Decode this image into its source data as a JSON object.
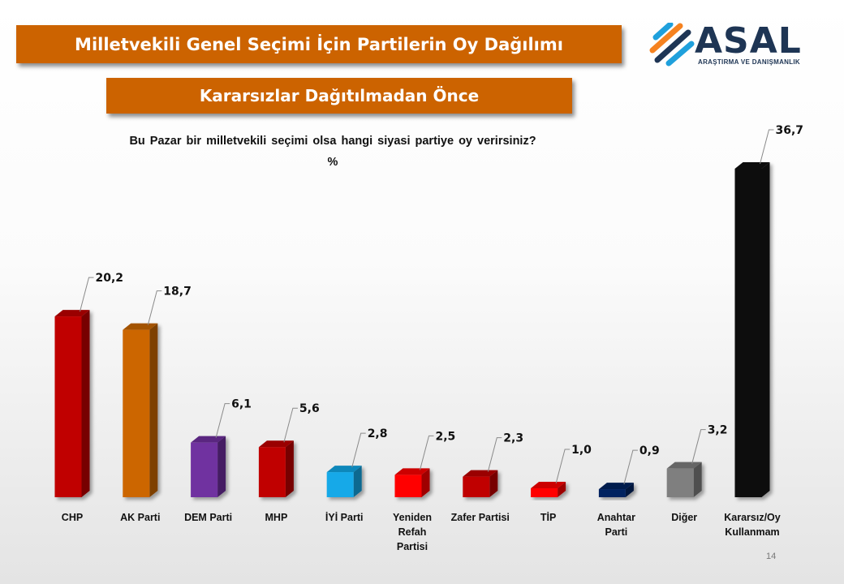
{
  "header": {
    "title": "Milletvekili Genel Seçimi İçin Partilerin Oy Dağılımı",
    "subtitle": "Kararsızlar Dağıtılmadan Önce"
  },
  "logo": {
    "name": "ASAL",
    "tagline": "ARAŞTIRMA VE DANIŞMANLIK"
  },
  "page_number": "14",
  "chart_data": {
    "type": "bar",
    "title": "Bu Pazar bir milletvekili seçimi olsa hangi siyasi partiye oy verirsiniz?",
    "ylabel": "%",
    "xlabel": "",
    "ylim": [
      0,
      36.7
    ],
    "categories": [
      "CHP",
      "AK Parti",
      "DEM Parti",
      "MHP",
      "İYİ Parti",
      "Yeniden Refah Partisi",
      "Zafer Partisi",
      "TİP",
      "Anahtar Parti",
      "Diğer",
      "Kararsız/Oy Kullanmam"
    ],
    "category_lines": [
      [
        "CHP"
      ],
      [
        "AK Parti"
      ],
      [
        "DEM Parti"
      ],
      [
        "MHP"
      ],
      [
        "İYİ Parti"
      ],
      [
        "Yeniden",
        "Refah",
        "Partisi"
      ],
      [
        "Zafer Partisi"
      ],
      [
        "TİP"
      ],
      [
        "Anahtar",
        "Parti"
      ],
      [
        "Diğer"
      ],
      [
        "Kararsız/Oy",
        "Kullanmam"
      ]
    ],
    "values": [
      20.2,
      18.7,
      6.1,
      5.6,
      2.8,
      2.5,
      2.3,
      1.0,
      0.9,
      3.2,
      36.7
    ],
    "value_labels": [
      "20,2",
      "18,7",
      "6,1",
      "5,6",
      "2,8",
      "2,5",
      "2,3",
      "1,0",
      "0,9",
      "3,2",
      "36,7"
    ],
    "colors": [
      "#c00000",
      "#cc6600",
      "#7030a0",
      "#c00000",
      "#12a9e8",
      "#ff0000",
      "#c00000",
      "#ff0000",
      "#002060",
      "#7f7f7f",
      "#0d0d0d"
    ],
    "grid": false,
    "legend": "none"
  }
}
